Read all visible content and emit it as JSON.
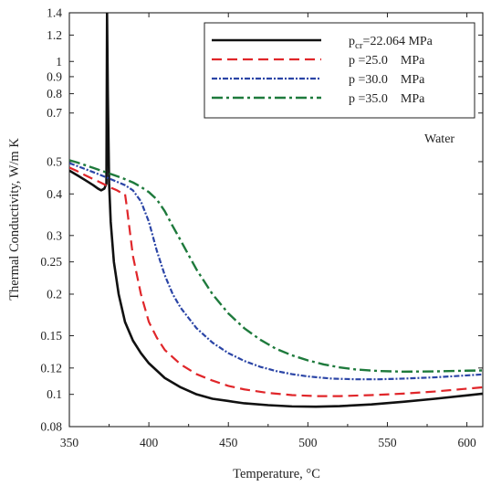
{
  "chart_data": {
    "type": "line",
    "xlabel": "Temperature, °C",
    "ylabel": "Thermal Conductivity, W/m K",
    "xlim": [
      350,
      610
    ],
    "ylim": [
      0.08,
      1.4
    ],
    "y_scale": "log",
    "grid": false,
    "legend_position": "top-right",
    "annotation": "Water",
    "x_ticks": [
      {
        "value": 350,
        "label": "350"
      },
      {
        "value": 400,
        "label": "400"
      },
      {
        "value": 450,
        "label": "450"
      },
      {
        "value": 500,
        "label": "500"
      },
      {
        "value": 550,
        "label": "550"
      },
      {
        "value": 600,
        "label": "600"
      }
    ],
    "y_ticks": [
      {
        "value": 1.4,
        "label": "1.4"
      },
      {
        "value": 1.2,
        "label": "1.2"
      },
      {
        "value": 1.0,
        "label": "1"
      },
      {
        "value": 0.9,
        "label": "0.9"
      },
      {
        "value": 0.8,
        "label": "0.8"
      },
      {
        "value": 0.7,
        "label": "0.7"
      },
      {
        "value": 0.5,
        "label": "0.5"
      },
      {
        "value": 0.4,
        "label": "0.4"
      },
      {
        "value": 0.3,
        "label": "0.3"
      },
      {
        "value": 0.25,
        "label": "0.25"
      },
      {
        "value": 0.2,
        "label": "0.2"
      },
      {
        "value": 0.15,
        "label": "0.15"
      },
      {
        "value": 0.12,
        "label": "0.12"
      },
      {
        "value": 0.1,
        "label": "0.1"
      },
      {
        "value": 0.08,
        "label": "0.08"
      }
    ],
    "series": [
      {
        "legend_prefix": "p",
        "legend_sub": "cr",
        "legend_suffix": "=22.064 MPa",
        "color": "#111111",
        "dash": "",
        "width": 2.6,
        "points": [
          [
            350,
            0.47
          ],
          [
            355,
            0.455
          ],
          [
            360,
            0.44
          ],
          [
            365,
            0.425
          ],
          [
            368,
            0.415
          ],
          [
            370,
            0.41
          ],
          [
            372,
            0.415
          ],
          [
            373.3,
            0.43
          ],
          [
            373.7,
            1.4
          ],
          [
            374.2,
            0.8
          ],
          [
            375,
            0.43
          ],
          [
            376,
            0.33
          ],
          [
            378,
            0.25
          ],
          [
            381,
            0.2
          ],
          [
            385,
            0.165
          ],
          [
            390,
            0.145
          ],
          [
            395,
            0.133
          ],
          [
            400,
            0.124
          ],
          [
            410,
            0.112
          ],
          [
            420,
            0.105
          ],
          [
            430,
            0.1
          ],
          [
            440,
            0.097
          ],
          [
            450,
            0.0955
          ],
          [
            460,
            0.094
          ],
          [
            475,
            0.0928
          ],
          [
            490,
            0.092
          ],
          [
            505,
            0.0918
          ],
          [
            520,
            0.0922
          ],
          [
            540,
            0.0933
          ],
          [
            560,
            0.095
          ],
          [
            580,
            0.097
          ],
          [
            600,
            0.0993
          ],
          [
            610,
            0.1005
          ]
        ]
      },
      {
        "legend_prefix": "p",
        "legend_sub": "",
        "legend_suffix": " =25.0    MPa",
        "color": "#e0262a",
        "dash": "11 6",
        "width": 2.2,
        "points": [
          [
            350,
            0.48
          ],
          [
            355,
            0.468
          ],
          [
            360,
            0.455
          ],
          [
            365,
            0.443
          ],
          [
            370,
            0.432
          ],
          [
            375,
            0.42
          ],
          [
            380,
            0.41
          ],
          [
            383,
            0.402
          ],
          [
            385,
            0.4
          ],
          [
            386,
            0.37
          ],
          [
            388,
            0.31
          ],
          [
            390,
            0.26
          ],
          [
            395,
            0.2
          ],
          [
            400,
            0.165
          ],
          [
            405,
            0.148
          ],
          [
            410,
            0.136
          ],
          [
            420,
            0.123
          ],
          [
            430,
            0.115
          ],
          [
            440,
            0.11
          ],
          [
            450,
            0.106
          ],
          [
            460,
            0.1035
          ],
          [
            475,
            0.101
          ],
          [
            490,
            0.0995
          ],
          [
            505,
            0.0988
          ],
          [
            520,
            0.0988
          ],
          [
            540,
            0.0995
          ],
          [
            560,
            0.1005
          ],
          [
            580,
            0.102
          ],
          [
            600,
            0.104
          ],
          [
            610,
            0.105
          ]
        ]
      },
      {
        "legend_prefix": "p",
        "legend_sub": "",
        "legend_suffix": " =30.0    MPa",
        "color": "#2b45a6",
        "dash": "6 2 2 2",
        "width": 2.2,
        "points": [
          [
            350,
            0.495
          ],
          [
            355,
            0.485
          ],
          [
            360,
            0.475
          ],
          [
            365,
            0.465
          ],
          [
            370,
            0.455
          ],
          [
            375,
            0.445
          ],
          [
            380,
            0.435
          ],
          [
            385,
            0.425
          ],
          [
            390,
            0.41
          ],
          [
            395,
            0.38
          ],
          [
            400,
            0.33
          ],
          [
            405,
            0.27
          ],
          [
            410,
            0.228
          ],
          [
            415,
            0.2
          ],
          [
            420,
            0.182
          ],
          [
            430,
            0.158
          ],
          [
            440,
            0.143
          ],
          [
            450,
            0.133
          ],
          [
            460,
            0.126
          ],
          [
            470,
            0.121
          ],
          [
            480,
            0.1175
          ],
          [
            490,
            0.115
          ],
          [
            500,
            0.1132
          ],
          [
            515,
            0.1115
          ],
          [
            530,
            0.111
          ],
          [
            545,
            0.111
          ],
          [
            560,
            0.1115
          ],
          [
            580,
            0.1125
          ],
          [
            600,
            0.114
          ],
          [
            610,
            0.1148
          ]
        ]
      },
      {
        "legend_prefix": "p",
        "legend_sub": "",
        "legend_suffix": " =35.0    MPa",
        "color": "#1e7a3c",
        "dash": "12 4 3 4",
        "width": 2.4,
        "points": [
          [
            350,
            0.505
          ],
          [
            355,
            0.497
          ],
          [
            360,
            0.488
          ],
          [
            365,
            0.479
          ],
          [
            370,
            0.47
          ],
          [
            375,
            0.461
          ],
          [
            380,
            0.452
          ],
          [
            385,
            0.443
          ],
          [
            390,
            0.433
          ],
          [
            395,
            0.42
          ],
          [
            400,
            0.405
          ],
          [
            405,
            0.385
          ],
          [
            410,
            0.355
          ],
          [
            415,
            0.32
          ],
          [
            420,
            0.29
          ],
          [
            425,
            0.262
          ],
          [
            430,
            0.237
          ],
          [
            440,
            0.2
          ],
          [
            450,
            0.175
          ],
          [
            460,
            0.158
          ],
          [
            470,
            0.146
          ],
          [
            480,
            0.137
          ],
          [
            490,
            0.131
          ],
          [
            500,
            0.1265
          ],
          [
            510,
            0.123
          ],
          [
            520,
            0.1205
          ],
          [
            530,
            0.1188
          ],
          [
            545,
            0.1175
          ],
          [
            560,
            0.117
          ],
          [
            580,
            0.1172
          ],
          [
            600,
            0.1178
          ],
          [
            610,
            0.118
          ]
        ]
      }
    ]
  }
}
